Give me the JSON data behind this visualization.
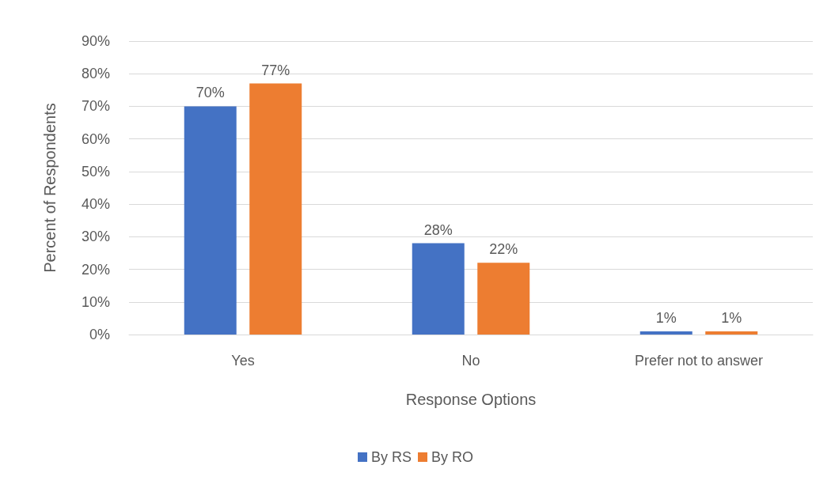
{
  "chart_data": {
    "type": "bar",
    "xlabel": "Response Options",
    "ylabel": "Percent of Respondents",
    "categories": [
      "Yes",
      "No",
      "Prefer not to answer"
    ],
    "series": [
      {
        "name": "By RS",
        "color": "#4472c4",
        "values": [
          70,
          28,
          1
        ],
        "value_labels": [
          "70%",
          "28%",
          "1%"
        ]
      },
      {
        "name": "By RO",
        "color": "#ed7d31",
        "values": [
          77,
          22,
          1
        ],
        "value_labels": [
          "77%",
          "22%",
          "1%"
        ]
      }
    ],
    "ylim": [
      0,
      90
    ],
    "yticks": [
      {
        "value": 0,
        "label": "0%"
      },
      {
        "value": 10,
        "label": "10%"
      },
      {
        "value": 20,
        "label": "20%"
      },
      {
        "value": 30,
        "label": "30%"
      },
      {
        "value": 40,
        "label": "40%"
      },
      {
        "value": 50,
        "label": "50%"
      },
      {
        "value": 60,
        "label": "60%"
      },
      {
        "value": 70,
        "label": "70%"
      },
      {
        "value": 80,
        "label": "80%"
      },
      {
        "value": 90,
        "label": "90%"
      }
    ],
    "grid": "y",
    "legend": "bottom"
  }
}
